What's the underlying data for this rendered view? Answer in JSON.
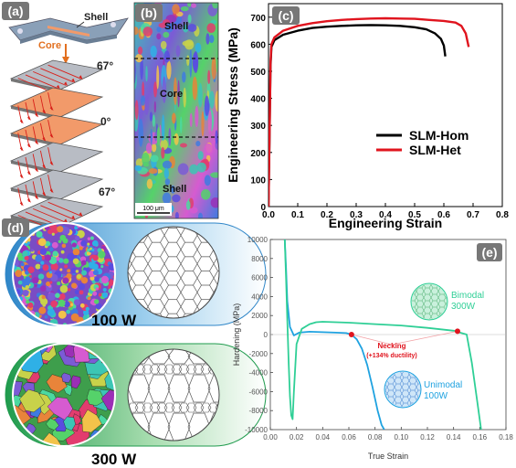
{
  "panels": {
    "a": {
      "tag": "(a)",
      "shell_label": "Shell",
      "core_label": "Core",
      "angle_top": "67°",
      "angle_mid": "0°",
      "angle_bottom": "67°"
    },
    "b": {
      "tag": "(b)",
      "shell_top_label": "Shell",
      "core_label": "Core",
      "shell_bottom_label": "Shell",
      "scale_bar": "100 μm"
    },
    "c": {
      "tag": "(c)"
    },
    "d": {
      "tag": "(d)",
      "power_1": "100 W",
      "power_2": "300 W"
    },
    "e": {
      "tag": "(e)",
      "necking_label": "Necking",
      "necking_note": "(+134% ductility)",
      "bimodal_label": "Bimodal",
      "bimodal_power": "300W",
      "unimodal_label": "Unimodal",
      "unimodal_power": "100W"
    }
  },
  "colors": {
    "hom": "#000000",
    "het": "#e0141e",
    "unimodal": "#1fa2e0",
    "bimodal": "#2fcf96",
    "necking_point": "#e0141e",
    "shell_plate": "#b8bcc4",
    "core_plate": "#f29a6a"
  },
  "chart_data": [
    {
      "type": "line",
      "panel": "c",
      "xlabel": "Engineering Strain",
      "ylabel": "Engineering Stress (MPa)",
      "xlim": [
        0,
        0.8
      ],
      "ylim": [
        0,
        750
      ],
      "xticks": [
        "0.0",
        "0.1",
        "0.2",
        "0.3",
        "0.4",
        "0.5",
        "0.6",
        "0.7",
        "0.8"
      ],
      "yticks": [
        "0",
        "100",
        "200",
        "300",
        "400",
        "500",
        "600",
        "700"
      ],
      "legend_position": "lower-right",
      "series": [
        {
          "name": "SLM-Hom",
          "x": [
            0,
            0.004,
            0.007,
            0.01,
            0.02,
            0.05,
            0.1,
            0.15,
            0.2,
            0.25,
            0.3,
            0.35,
            0.4,
            0.45,
            0.5,
            0.54,
            0.57,
            0.59,
            0.6,
            0.605
          ],
          "y": [
            0,
            300,
            520,
            590,
            615,
            635,
            650,
            660,
            665,
            668,
            670,
            671,
            670,
            668,
            663,
            655,
            640,
            620,
            595,
            555
          ]
        },
        {
          "name": "SLM-Het",
          "x": [
            0,
            0.004,
            0.007,
            0.01,
            0.02,
            0.05,
            0.1,
            0.15,
            0.2,
            0.25,
            0.3,
            0.35,
            0.4,
            0.45,
            0.5,
            0.55,
            0.6,
            0.64,
            0.66,
            0.675,
            0.685
          ],
          "y": [
            0,
            300,
            530,
            600,
            625,
            650,
            668,
            678,
            685,
            690,
            693,
            695,
            696,
            695,
            694,
            690,
            686,
            680,
            668,
            640,
            590
          ]
        }
      ]
    },
    {
      "type": "line",
      "panel": "e",
      "xlabel": "True Strain",
      "ylabel": "Hardening (MPa)",
      "xlim": [
        0,
        0.18
      ],
      "ylim": [
        -10000,
        10000
      ],
      "xticks": [
        "0.00",
        "0.02",
        "0.04",
        "0.06",
        "0.08",
        "0.10",
        "0.12",
        "0.14",
        "0.16",
        "0.18"
      ],
      "yticks": [
        "10000",
        "8000",
        "6000",
        "4000",
        "2000",
        "0",
        "-2000",
        "-4000",
        "-6000",
        "-8000",
        "-10000"
      ],
      "series": [
        {
          "name": "Unimodal 100W",
          "x": [
            0.011,
            0.012,
            0.013,
            0.015,
            0.018,
            0.022,
            0.03,
            0.04,
            0.05,
            0.058,
            0.062,
            0.066,
            0.07,
            0.074,
            0.078,
            0.082,
            0.085,
            0.087
          ],
          "y": [
            10000,
            7000,
            3500,
            800,
            -100,
            200,
            300,
            250,
            200,
            150,
            0,
            -500,
            -1500,
            -3200,
            -5500,
            -8000,
            -9500,
            -10000
          ]
        },
        {
          "name": "Bimodal 300W",
          "x": [
            0.011,
            0.012,
            0.013,
            0.014,
            0.015,
            0.016,
            0.017,
            0.018,
            0.02,
            0.024,
            0.03,
            0.035,
            0.04,
            0.06,
            0.08,
            0.1,
            0.12,
            0.14,
            0.15,
            0.154,
            0.158,
            0.161
          ],
          "y": [
            10000,
            6000,
            1500,
            -3000,
            -6500,
            -8500,
            -8900,
            -6000,
            -1000,
            600,
            1100,
            1300,
            1350,
            1250,
            1100,
            950,
            700,
            400,
            0,
            -3000,
            -7000,
            -10000
          ]
        }
      ],
      "annotations": [
        {
          "label": "necking-unimodal",
          "x": 0.062,
          "y": 0
        },
        {
          "label": "necking-bimodal",
          "x": 0.143,
          "y": 350
        }
      ]
    }
  ]
}
